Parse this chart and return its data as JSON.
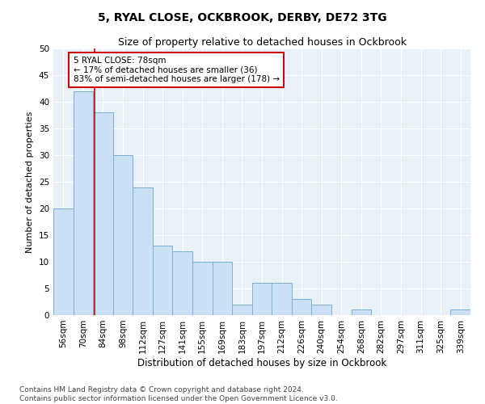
{
  "title": "5, RYAL CLOSE, OCKBROOK, DERBY, DE72 3TG",
  "subtitle": "Size of property relative to detached houses in Ockbrook",
  "xlabel": "Distribution of detached houses by size in Ockbrook",
  "ylabel": "Number of detached properties",
  "categories": [
    "56sqm",
    "70sqm",
    "84sqm",
    "98sqm",
    "112sqm",
    "127sqm",
    "141sqm",
    "155sqm",
    "169sqm",
    "183sqm",
    "197sqm",
    "212sqm",
    "226sqm",
    "240sqm",
    "254sqm",
    "268sqm",
    "282sqm",
    "297sqm",
    "311sqm",
    "325sqm",
    "339sqm"
  ],
  "values": [
    20,
    42,
    38,
    30,
    24,
    13,
    12,
    10,
    10,
    2,
    6,
    6,
    3,
    2,
    0,
    1,
    0,
    0,
    0,
    0,
    1
  ],
  "bar_color": "#cce0f5",
  "bar_edge_color": "#7ab0d4",
  "vline_color": "#cc0000",
  "annotation_text": "5 RYAL CLOSE: 78sqm\n← 17% of detached houses are smaller (36)\n83% of semi-detached houses are larger (178) →",
  "annotation_box_color": "#ffffff",
  "annotation_box_edge": "#cc0000",
  "ylim": [
    0,
    50
  ],
  "yticks": [
    0,
    5,
    10,
    15,
    20,
    25,
    30,
    35,
    40,
    45,
    50
  ],
  "footnote": "Contains HM Land Registry data © Crown copyright and database right 2024.\nContains public sector information licensed under the Open Government Licence v3.0.",
  "title_fontsize": 10,
  "subtitle_fontsize": 9,
  "xlabel_fontsize": 8.5,
  "ylabel_fontsize": 8,
  "tick_fontsize": 7.5,
  "annotation_fontsize": 7.5,
  "footnote_fontsize": 6.5,
  "bg_color": "#e8f0f8"
}
